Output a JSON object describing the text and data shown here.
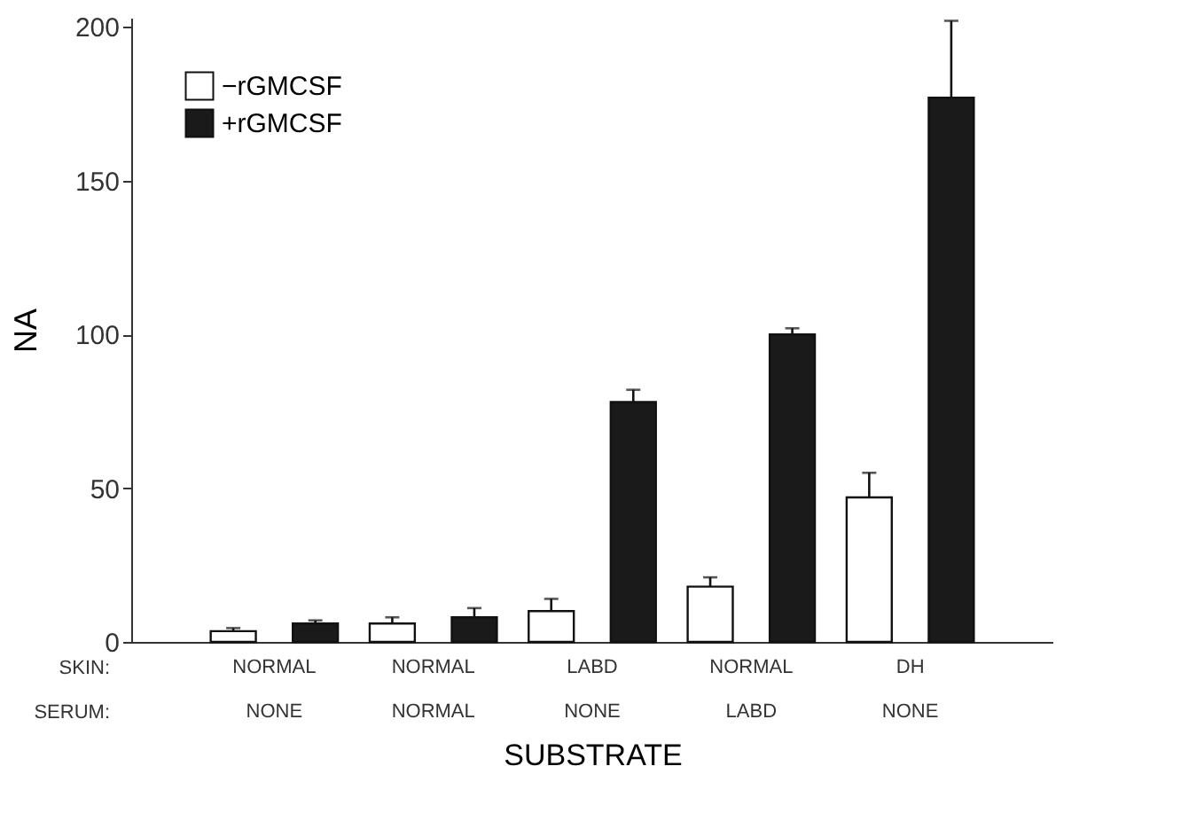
{
  "chart_data": {
    "type": "bar",
    "xlabel": "SUBSTRATE",
    "ylabel": "NA",
    "categories": [
      "NORMAL\nNONE",
      "NORMAL\nNORMAL",
      "LABD\nNONE",
      "NORMAL\nLABD",
      "DH\nNONE"
    ],
    "series": [
      {
        "name": "−rGMCSF",
        "color": "#ffffff",
        "values": [
          3.5,
          6,
          10,
          18,
          47
        ],
        "errors": [
          [
            3.5,
            4.5
          ],
          [
            6,
            8
          ],
          [
            10,
            14
          ],
          [
            18,
            21
          ],
          [
            47,
            55
          ]
        ]
      },
      {
        "name": "+rGMCSF",
        "color": "#1a1a1a",
        "values": [
          6,
          8,
          78,
          100,
          177
        ],
        "errors": [
          [
            6,
            7
          ],
          [
            8,
            11
          ],
          [
            78,
            82
          ],
          [
            100,
            102
          ],
          [
            177,
            202
          ]
        ]
      }
    ],
    "ylim": [
      0,
      203
    ],
    "yticks": [
      0,
      50,
      100,
      150,
      200
    ],
    "grid": false,
    "legend": "top left",
    "annotations": [
      "SKIN:",
      "SERUM:"
    ]
  }
}
